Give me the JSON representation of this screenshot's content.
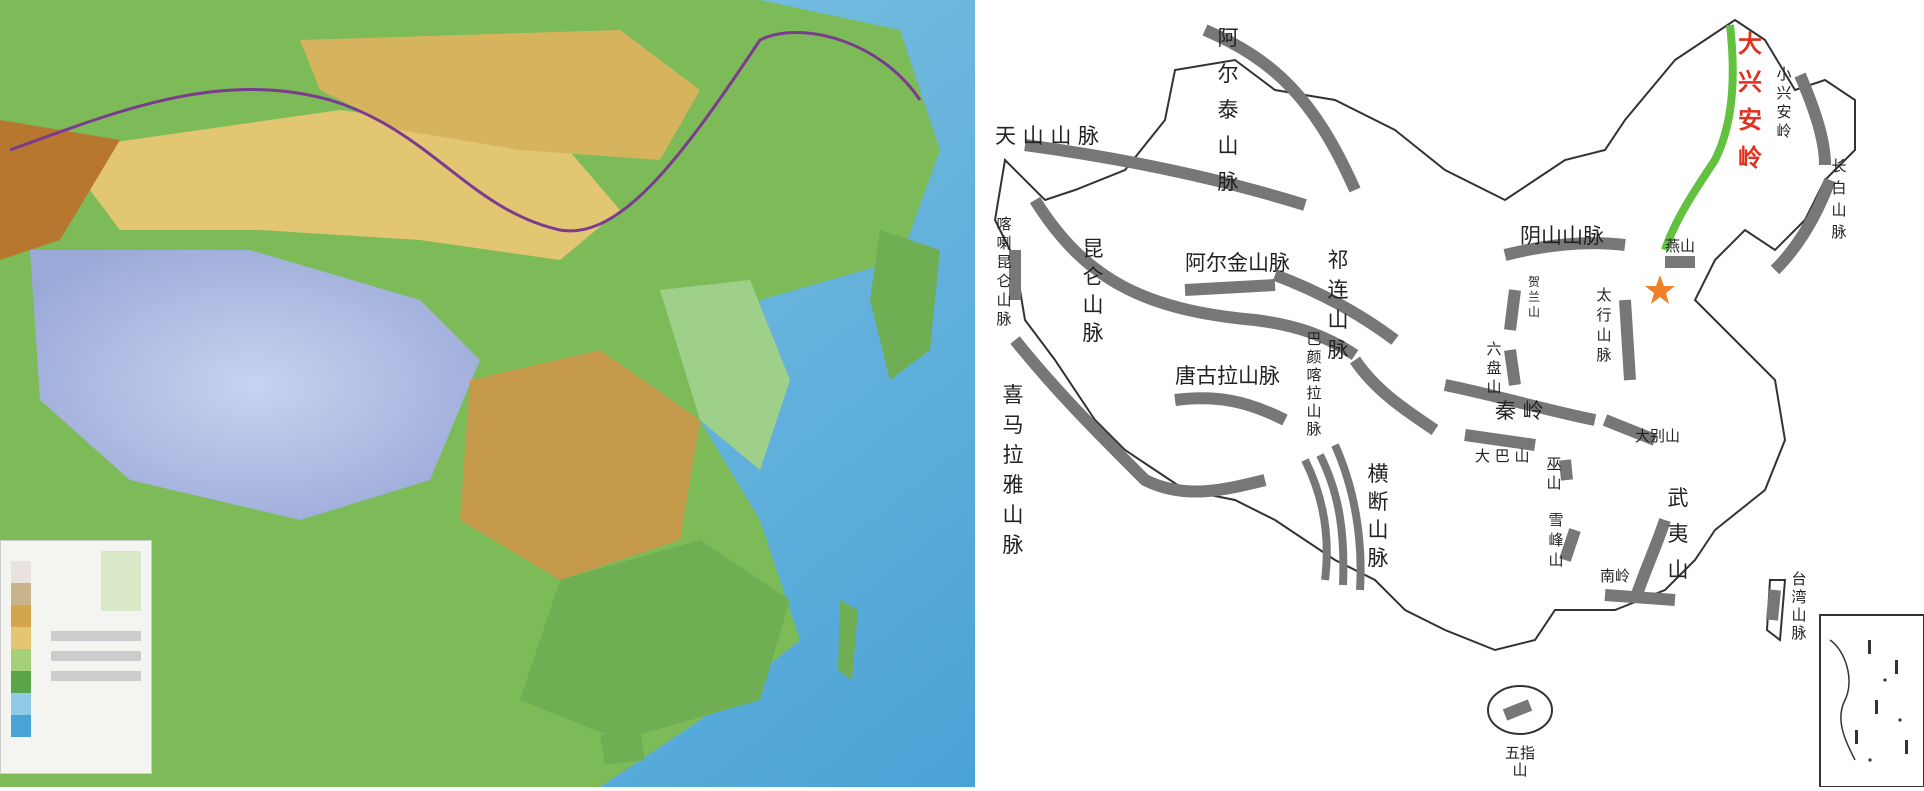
{
  "colors": {
    "range_lines": "#777777",
    "highlight_range": "#62c13f",
    "highlight_label": "#e0301e",
    "outline": "#333333",
    "capital_star": "#f07f2a"
  },
  "markers": [
    "star-icon"
  ],
  "labels": {
    "altai": "阿\n尔\n泰\n山\n脉",
    "tianshan": "天 山 山 脉",
    "kunlun": "昆\n仑\n山\n脉",
    "karakoram": "喀\n喇\n昆\n仑\n山\n脉",
    "himalaya": "喜\n马\n拉\n雅\n山\n脉",
    "altun": "阿尔金山脉",
    "qilian": "祁\n连\n山\n脉",
    "bayankala": "巴\n颜\n喀\n拉\n山\n脉",
    "tanggula": "唐古拉山脉",
    "hengduan": "横\n断\n山\n脉",
    "yinshan": "阴山山脉",
    "yanshan": "燕山",
    "daxinganling": "大\n兴\n安\n岭",
    "xiaoxinganling": "小\n兴\n安\n岭",
    "changbai": "长\n白\n山\n脉",
    "taihang": "太\n行\n山\n脉",
    "helan": "贺\n兰\n山",
    "liupan": "六\n盘\n山",
    "qinling": "秦 岭",
    "dabie": "大别山",
    "daba": "大 巴 山",
    "wushan": "巫\n山",
    "xuefeng": "雪\n峰\n山",
    "wuyi": "武\n夷\n山",
    "nanling": "南岭",
    "taiwan": "台\n湾\n山\n脉",
    "wuzhi": "五指\n山"
  }
}
